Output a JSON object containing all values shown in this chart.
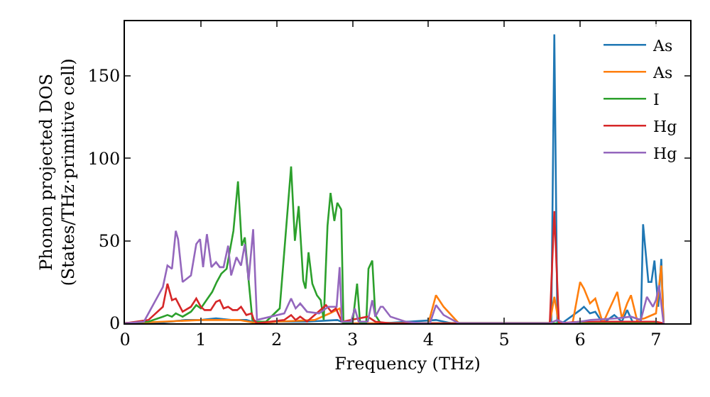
{
  "chart_data": {
    "type": "line",
    "xlabel": "Frequency (THz)",
    "ylabel": "Phonon projected DOS\n(States/THz·primitive cell)",
    "xlim": [
      0,
      7.45
    ],
    "ylim": [
      0,
      183
    ],
    "xticks": [
      0,
      1,
      2,
      3,
      4,
      5,
      6,
      7
    ],
    "yticks": [
      0,
      50,
      100,
      150
    ],
    "grid": false,
    "legend": "top right",
    "marker": "none",
    "line_style": "solid",
    "series": [
      {
        "name": "As",
        "color": "#1f77b4",
        "x": [
          0,
          0.4,
          0.6,
          0.8,
          1.0,
          1.2,
          1.4,
          1.6,
          1.75,
          2.0,
          2.4,
          2.8,
          2.9,
          3.4,
          4.1,
          4.3,
          5.55,
          5.62,
          5.66,
          5.7,
          5.76,
          6.0,
          6.05,
          6.13,
          6.2,
          6.3,
          6.45,
          6.55,
          6.62,
          6.7,
          6.8,
          6.83,
          6.9,
          6.94,
          6.98,
          7.03,
          7.07,
          7.1
        ],
        "values": [
          0,
          0,
          1,
          2,
          2,
          3,
          2,
          2,
          0,
          1,
          1,
          2,
          0,
          0,
          2,
          0,
          0,
          0,
          175,
          0,
          0,
          8,
          10,
          6,
          7,
          0,
          5,
          1,
          8,
          0,
          0,
          60,
          25,
          25,
          38,
          10,
          39,
          0
        ]
      },
      {
        "name": "As",
        "color": "#ff7f0e",
        "x": [
          0,
          0.5,
          1.0,
          1.5,
          1.75,
          2.0,
          2.5,
          2.7,
          2.83,
          2.88,
          3.2,
          4.0,
          4.1,
          4.2,
          4.4,
          5.6,
          5.66,
          5.72,
          5.9,
          6.0,
          6.05,
          6.13,
          6.2,
          6.3,
          6.49,
          6.55,
          6.62,
          6.67,
          6.75,
          6.85,
          7.0,
          7.07,
          7.1
        ],
        "values": [
          0,
          1,
          2,
          2,
          0,
          1,
          2,
          6,
          9,
          0,
          0,
          0,
          17,
          10,
          0,
          0,
          16,
          0,
          0,
          25,
          21,
          12,
          15,
          0,
          19,
          3,
          12,
          17,
          2,
          3,
          6,
          35,
          0
        ]
      },
      {
        "name": "I",
        "color": "#2ca02c",
        "x": [
          0,
          0.31,
          0.5,
          0.56,
          0.62,
          0.67,
          0.76,
          0.87,
          0.94,
          1.0,
          1.09,
          1.15,
          1.21,
          1.27,
          1.34,
          1.43,
          1.49,
          1.54,
          1.58,
          1.63,
          1.68,
          1.74,
          1.86,
          2.04,
          2.19,
          2.24,
          2.29,
          2.35,
          2.38,
          2.42,
          2.47,
          2.53,
          2.58,
          2.62,
          2.67,
          2.71,
          2.76,
          2.8,
          2.85,
          2.88,
          3.0,
          3.06,
          3.1,
          3.18,
          3.21,
          3.26,
          3.3,
          3.37,
          7.1
        ],
        "values": [
          0,
          1,
          4,
          5,
          4,
          6,
          4,
          7,
          11,
          9,
          15,
          19,
          25,
          30,
          33,
          56,
          86,
          47,
          52,
          26,
          2,
          1,
          1,
          9,
          95,
          50,
          71,
          26,
          21,
          43,
          24,
          17,
          14,
          2,
          59,
          79,
          62,
          73,
          69,
          0,
          0,
          24,
          0,
          0,
          33,
          38,
          5,
          0,
          0
        ]
      },
      {
        "name": "Hg",
        "color": "#d62728",
        "x": [
          0,
          0.31,
          0.5,
          0.56,
          0.62,
          0.67,
          0.76,
          0.87,
          0.94,
          1.0,
          1.05,
          1.13,
          1.2,
          1.25,
          1.3,
          1.36,
          1.42,
          1.48,
          1.53,
          1.6,
          1.67,
          1.7,
          1.74,
          2.1,
          2.19,
          2.25,
          2.31,
          2.4,
          2.65,
          2.72,
          2.78,
          2.86,
          3.2,
          3.3,
          3.5,
          5.6,
          5.66,
          5.72,
          6.0,
          6.5,
          7.0,
          7.1
        ],
        "values": [
          0,
          2,
          10,
          24,
          14,
          15,
          7,
          10,
          15,
          10,
          8,
          8,
          13,
          14,
          9,
          10,
          8,
          8,
          10,
          5,
          6,
          2,
          0,
          2,
          5,
          2,
          4,
          1,
          11,
          7,
          9,
          1,
          4,
          1,
          0,
          0,
          68,
          0,
          1,
          1,
          1,
          0
        ]
      },
      {
        "name": "Hg",
        "color": "#9467bd",
        "x": [
          0,
          0.25,
          0.5,
          0.56,
          0.62,
          0.67,
          0.7,
          0.76,
          0.87,
          0.94,
          0.99,
          1.03,
          1.08,
          1.14,
          1.2,
          1.25,
          1.3,
          1.36,
          1.4,
          1.47,
          1.53,
          1.58,
          1.63,
          1.69,
          1.74,
          2.1,
          2.19,
          2.25,
          2.31,
          2.4,
          2.56,
          2.68,
          2.79,
          2.83,
          2.86,
          2.98,
          3.03,
          3.08,
          3.2,
          3.26,
          3.3,
          3.37,
          3.4,
          3.5,
          3.7,
          3.9,
          4.02,
          4.1,
          4.2,
          4.4,
          5.6,
          5.7,
          5.8,
          6.0,
          6.14,
          6.49,
          6.67,
          6.8,
          6.88,
          6.96,
          7.0,
          7.04,
          7.1
        ],
        "values": [
          0,
          1,
          22,
          35,
          33,
          56,
          51,
          25,
          29,
          48,
          51,
          34,
          54,
          34,
          37,
          34,
          34,
          47,
          29,
          40,
          35,
          48,
          26,
          57,
          2,
          6,
          15,
          9,
          12,
          7,
          6,
          10,
          10,
          34,
          1,
          1,
          9,
          1,
          1,
          14,
          4,
          10,
          10,
          4,
          1,
          0,
          0,
          11,
          5,
          0,
          0,
          2,
          0,
          1,
          2,
          3,
          4,
          2,
          16,
          10,
          14,
          23,
          0
        ]
      }
    ]
  }
}
